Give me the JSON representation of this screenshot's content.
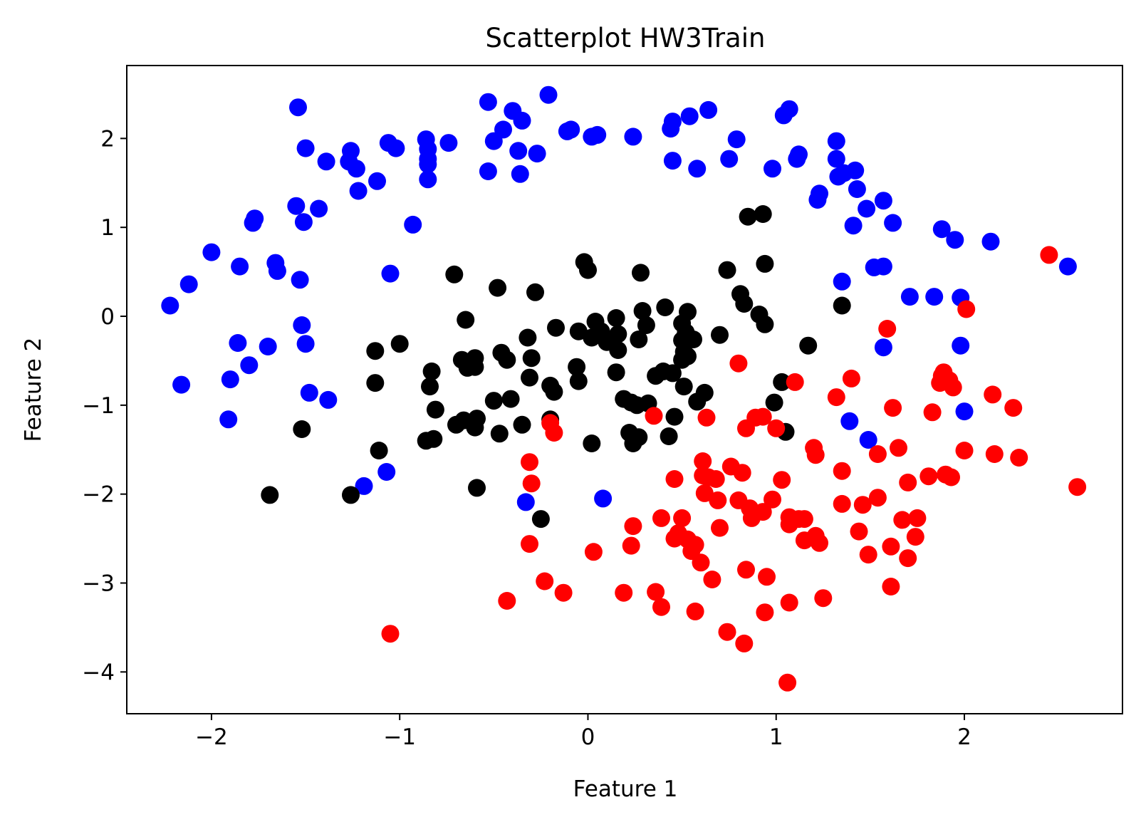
{
  "chart_data": {
    "type": "scatter",
    "title": "Scatterplot HW3Train",
    "xlabel": "Feature 1",
    "ylabel": "Feature 2",
    "xlim": [
      -2.45,
      2.84
    ],
    "ylim": [
      -4.47,
      2.82
    ],
    "xticks": [
      -2,
      -1,
      0,
      1,
      2
    ],
    "yticks": [
      -4,
      -3,
      -2,
      -1,
      0,
      1,
      2
    ],
    "xtick_labels": [
      "−2",
      "−1",
      "0",
      "1",
      "2"
    ],
    "ytick_labels": [
      "−4",
      "−3",
      "−2",
      "−1",
      "0",
      "1",
      "2"
    ],
    "grid": false,
    "series": [
      {
        "color": "#0000ff",
        "points": [
          [
            -2.22,
            0.12
          ],
          [
            -2.16,
            -0.77
          ],
          [
            -2.12,
            0.36
          ],
          [
            -2.0,
            0.72
          ],
          [
            -1.91,
            -1.16
          ],
          [
            -1.9,
            -0.71
          ],
          [
            -1.86,
            -0.3
          ],
          [
            -1.85,
            0.56
          ],
          [
            -1.8,
            -0.55
          ],
          [
            -1.78,
            1.05
          ],
          [
            -1.77,
            1.1
          ],
          [
            -1.7,
            -0.34
          ],
          [
            -1.66,
            0.6
          ],
          [
            -1.65,
            0.51
          ],
          [
            -1.55,
            1.24
          ],
          [
            -1.54,
            2.35
          ],
          [
            -1.53,
            0.41
          ],
          [
            -1.52,
            -0.1
          ],
          [
            -1.51,
            1.06
          ],
          [
            -1.5,
            1.89
          ],
          [
            -1.5,
            -0.31
          ],
          [
            -1.48,
            -0.86
          ],
          [
            -1.43,
            1.21
          ],
          [
            -1.39,
            1.74
          ],
          [
            -1.38,
            -0.94
          ],
          [
            -1.27,
            1.74
          ],
          [
            -1.26,
            1.86
          ],
          [
            -1.23,
            1.66
          ],
          [
            -1.22,
            1.41
          ],
          [
            -1.19,
            -1.91
          ],
          [
            -1.12,
            1.52
          ],
          [
            -1.07,
            -1.75
          ],
          [
            -1.06,
            1.95
          ],
          [
            -1.05,
            0.48
          ],
          [
            -1.02,
            1.89
          ],
          [
            -0.93,
            1.03
          ],
          [
            -0.86,
            1.99
          ],
          [
            -0.85,
            1.88
          ],
          [
            -0.85,
            1.77
          ],
          [
            -0.85,
            1.71
          ],
          [
            -0.85,
            1.54
          ],
          [
            -0.74,
            1.95
          ],
          [
            -0.53,
            2.41
          ],
          [
            -0.53,
            1.63
          ],
          [
            -0.5,
            1.97
          ],
          [
            -0.45,
            2.1
          ],
          [
            -0.4,
            2.31
          ],
          [
            -0.37,
            1.86
          ],
          [
            -0.36,
            1.6
          ],
          [
            -0.35,
            2.2
          ],
          [
            -0.33,
            -2.09
          ],
          [
            -0.27,
            1.83
          ],
          [
            -0.21,
            2.49
          ],
          [
            -0.11,
            2.08
          ],
          [
            -0.09,
            2.1
          ],
          [
            0.02,
            2.02
          ],
          [
            0.05,
            2.04
          ],
          [
            0.08,
            -2.05
          ],
          [
            0.24,
            2.02
          ],
          [
            0.44,
            2.11
          ],
          [
            0.45,
            2.19
          ],
          [
            0.45,
            1.75
          ],
          [
            0.54,
            2.25
          ],
          [
            0.58,
            1.66
          ],
          [
            0.64,
            2.32
          ],
          [
            0.75,
            1.77
          ],
          [
            0.79,
            1.99
          ],
          [
            0.98,
            1.66
          ],
          [
            1.04,
            2.26
          ],
          [
            1.07,
            2.33
          ],
          [
            1.11,
            1.77
          ],
          [
            1.12,
            1.82
          ],
          [
            1.22,
            1.31
          ],
          [
            1.23,
            1.38
          ],
          [
            1.32,
            1.97
          ],
          [
            1.32,
            1.77
          ],
          [
            1.33,
            1.57
          ],
          [
            1.35,
            0.39
          ],
          [
            1.36,
            1.61
          ],
          [
            1.39,
            -1.18
          ],
          [
            1.41,
            1.02
          ],
          [
            1.42,
            1.64
          ],
          [
            1.43,
            1.43
          ],
          [
            1.48,
            1.21
          ],
          [
            1.49,
            -1.39
          ],
          [
            1.52,
            0.55
          ],
          [
            1.57,
            -0.35
          ],
          [
            1.57,
            1.3
          ],
          [
            1.57,
            0.56
          ],
          [
            1.62,
            1.05
          ],
          [
            1.71,
            0.22
          ],
          [
            1.84,
            0.22
          ],
          [
            1.88,
            0.98
          ],
          [
            1.95,
            0.86
          ],
          [
            1.98,
            0.21
          ],
          [
            1.98,
            -0.33
          ],
          [
            2.0,
            -1.07
          ],
          [
            2.14,
            0.84
          ],
          [
            2.55,
            0.56
          ]
        ]
      },
      {
        "color": "#000000",
        "points": [
          [
            -1.69,
            -2.01
          ],
          [
            -1.52,
            -1.27
          ],
          [
            -1.26,
            -2.01
          ],
          [
            -1.13,
            -0.39
          ],
          [
            -1.13,
            -0.75
          ],
          [
            -1.11,
            -1.51
          ],
          [
            -1.0,
            -0.31
          ],
          [
            -0.86,
            -1.4
          ],
          [
            -0.83,
            -0.62
          ],
          [
            -0.84,
            -0.79
          ],
          [
            -0.82,
            -1.38
          ],
          [
            -0.81,
            -1.05
          ],
          [
            -0.71,
            0.47
          ],
          [
            -0.7,
            -1.22
          ],
          [
            -0.67,
            -0.49
          ],
          [
            -0.66,
            -1.17
          ],
          [
            -0.65,
            -0.04
          ],
          [
            -0.64,
            -0.58
          ],
          [
            -0.6,
            -1.25
          ],
          [
            -0.6,
            -0.47
          ],
          [
            -0.59,
            -1.93
          ],
          [
            -0.59,
            -1.15
          ],
          [
            -0.6,
            -0.57
          ],
          [
            -0.48,
            0.32
          ],
          [
            -0.5,
            -0.95
          ],
          [
            -0.47,
            -1.32
          ],
          [
            -0.46,
            -0.41
          ],
          [
            -0.43,
            -0.49
          ],
          [
            -0.41,
            -0.93
          ],
          [
            -0.35,
            -1.22
          ],
          [
            -0.32,
            -0.24
          ],
          [
            -0.31,
            -0.69
          ],
          [
            -0.3,
            -0.47
          ],
          [
            -0.28,
            0.27
          ],
          [
            -0.25,
            -2.28
          ],
          [
            -0.2,
            -1.16
          ],
          [
            -0.2,
            -0.78
          ],
          [
            -0.18,
            -0.85
          ],
          [
            -0.17,
            -0.13
          ],
          [
            -0.06,
            -0.57
          ],
          [
            -0.05,
            -0.73
          ],
          [
            -0.05,
            -0.17
          ],
          [
            -0.02,
            0.61
          ],
          [
            0.0,
            0.52
          ],
          [
            0.02,
            -1.43
          ],
          [
            0.02,
            -0.24
          ],
          [
            0.04,
            -0.06
          ],
          [
            0.07,
            -0.17
          ],
          [
            0.1,
            -0.29
          ],
          [
            0.15,
            -0.63
          ],
          [
            0.15,
            -0.02
          ],
          [
            0.16,
            -0.2
          ],
          [
            0.16,
            -0.38
          ],
          [
            0.19,
            -0.93
          ],
          [
            0.22,
            -1.31
          ],
          [
            0.23,
            -0.97
          ],
          [
            0.24,
            -1.43
          ],
          [
            0.26,
            -1.0
          ],
          [
            0.27,
            -1.36
          ],
          [
            0.27,
            -0.26
          ],
          [
            0.28,
            0.49
          ],
          [
            0.29,
            0.06
          ],
          [
            0.31,
            -0.1
          ],
          [
            0.32,
            -0.98
          ],
          [
            0.36,
            -0.67
          ],
          [
            0.4,
            -0.62
          ],
          [
            0.41,
            0.1
          ],
          [
            0.43,
            -1.35
          ],
          [
            0.45,
            -0.64
          ],
          [
            0.46,
            -1.13
          ],
          [
            0.5,
            -0.49
          ],
          [
            0.5,
            -0.27
          ],
          [
            0.5,
            -0.08
          ],
          [
            0.51,
            -0.4
          ],
          [
            0.52,
            -0.18
          ],
          [
            0.53,
            -0.45
          ],
          [
            0.53,
            0.05
          ],
          [
            0.51,
            -0.79
          ],
          [
            0.56,
            -0.26
          ],
          [
            0.58,
            -0.96
          ],
          [
            0.62,
            -0.86
          ],
          [
            0.7,
            -0.21
          ],
          [
            0.74,
            0.52
          ],
          [
            0.81,
            0.25
          ],
          [
            0.83,
            0.14
          ],
          [
            0.85,
            1.12
          ],
          [
            0.91,
            0.02
          ],
          [
            0.93,
            1.15
          ],
          [
            0.94,
            -0.09
          ],
          [
            0.94,
            0.59
          ],
          [
            0.99,
            -0.97
          ],
          [
            1.03,
            -0.74
          ],
          [
            1.05,
            -1.3
          ],
          [
            1.17,
            -0.33
          ],
          [
            1.35,
            0.12
          ]
        ]
      },
      {
        "color": "#ff0000",
        "points": [
          [
            -1.05,
            -3.57
          ],
          [
            -0.43,
            -3.2
          ],
          [
            -0.31,
            -1.64
          ],
          [
            -0.3,
            -1.88
          ],
          [
            -0.31,
            -2.56
          ],
          [
            -0.23,
            -2.98
          ],
          [
            -0.2,
            -1.2
          ],
          [
            -0.18,
            -1.31
          ],
          [
            -0.13,
            -3.11
          ],
          [
            0.03,
            -2.65
          ],
          [
            0.19,
            -3.11
          ],
          [
            0.23,
            -2.58
          ],
          [
            0.24,
            -2.36
          ],
          [
            0.35,
            -1.12
          ],
          [
            0.36,
            -3.1
          ],
          [
            0.39,
            -3.27
          ],
          [
            0.39,
            -2.27
          ],
          [
            0.46,
            -1.83
          ],
          [
            0.46,
            -2.5
          ],
          [
            0.48,
            -2.44
          ],
          [
            0.5,
            -2.27
          ],
          [
            0.53,
            -2.51
          ],
          [
            0.55,
            -2.64
          ],
          [
            0.57,
            -2.57
          ],
          [
            0.57,
            -3.32
          ],
          [
            0.6,
            -2.77
          ],
          [
            0.61,
            -1.79
          ],
          [
            0.61,
            -1.63
          ],
          [
            0.62,
            -1.99
          ],
          [
            0.63,
            -1.14
          ],
          [
            0.64,
            -1.81
          ],
          [
            0.66,
            -2.96
          ],
          [
            0.68,
            -1.83
          ],
          [
            0.69,
            -2.07
          ],
          [
            0.7,
            -2.38
          ],
          [
            0.74,
            -3.55
          ],
          [
            0.76,
            -1.69
          ],
          [
            0.8,
            -2.07
          ],
          [
            0.8,
            -0.53
          ],
          [
            0.82,
            -1.76
          ],
          [
            0.83,
            -3.68
          ],
          [
            0.84,
            -2.85
          ],
          [
            0.84,
            -1.26
          ],
          [
            0.86,
            -2.16
          ],
          [
            0.87,
            -2.27
          ],
          [
            0.89,
            -1.14
          ],
          [
            0.93,
            -1.13
          ],
          [
            0.93,
            -2.2
          ],
          [
            0.94,
            -3.33
          ],
          [
            0.95,
            -2.93
          ],
          [
            0.98,
            -2.06
          ],
          [
            1.0,
            -1.26
          ],
          [
            1.03,
            -1.84
          ],
          [
            1.06,
            -4.12
          ],
          [
            1.07,
            -2.26
          ],
          [
            1.07,
            -2.34
          ],
          [
            1.07,
            -3.22
          ],
          [
            1.1,
            -0.74
          ],
          [
            1.12,
            -2.28
          ],
          [
            1.15,
            -2.52
          ],
          [
            1.15,
            -2.28
          ],
          [
            1.2,
            -1.48
          ],
          [
            1.21,
            -1.56
          ],
          [
            1.21,
            -2.47
          ],
          [
            1.23,
            -2.55
          ],
          [
            1.25,
            -3.17
          ],
          [
            1.32,
            -0.91
          ],
          [
            1.35,
            -2.11
          ],
          [
            1.35,
            -1.74
          ],
          [
            1.4,
            -0.7
          ],
          [
            1.44,
            -2.42
          ],
          [
            1.46,
            -2.12
          ],
          [
            1.49,
            -2.68
          ],
          [
            1.54,
            -1.55
          ],
          [
            1.54,
            -2.04
          ],
          [
            1.59,
            -0.14
          ],
          [
            1.61,
            -2.59
          ],
          [
            1.61,
            -3.04
          ],
          [
            1.62,
            -1.03
          ],
          [
            1.65,
            -1.48
          ],
          [
            1.67,
            -2.29
          ],
          [
            1.7,
            -2.72
          ],
          [
            1.7,
            -1.87
          ],
          [
            1.74,
            -2.48
          ],
          [
            1.75,
            -2.27
          ],
          [
            1.81,
            -1.8
          ],
          [
            1.83,
            -1.08
          ],
          [
            1.87,
            -0.75
          ],
          [
            1.88,
            -0.67
          ],
          [
            1.89,
            -0.63
          ],
          [
            1.9,
            -1.78
          ],
          [
            1.92,
            -0.72
          ],
          [
            1.93,
            -1.81
          ],
          [
            1.94,
            -0.8
          ],
          [
            2.01,
            0.08
          ],
          [
            2.0,
            -1.51
          ],
          [
            2.15,
            -0.88
          ],
          [
            2.16,
            -1.55
          ],
          [
            2.26,
            -1.03
          ],
          [
            2.29,
            -1.59
          ],
          [
            2.45,
            0.69
          ],
          [
            2.6,
            -1.92
          ]
        ]
      }
    ]
  }
}
